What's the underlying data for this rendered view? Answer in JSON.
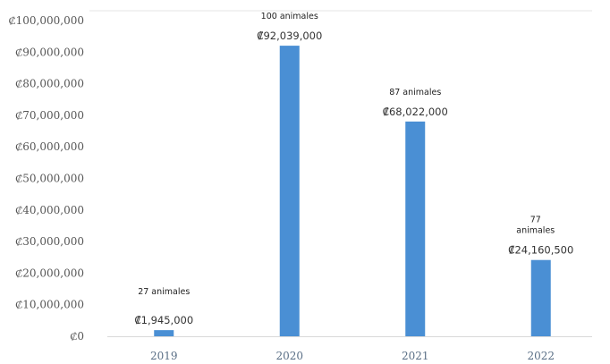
{
  "chart_data": {
    "type": "bar",
    "title": "",
    "xlabel": "",
    "ylabel": "",
    "categories": [
      "2019",
      "2020",
      "2021",
      "2022"
    ],
    "values": [
      1945000,
      92039000,
      68022000,
      24160500
    ],
    "value_labels": [
      "₡1,945,000",
      "₡92,039,000",
      "₡68,022,000",
      "₡24,160,500"
    ],
    "annotations": [
      [
        "27 animales"
      ],
      [
        "100 animales"
      ],
      [
        "87 animales"
      ],
      [
        "77",
        "animales"
      ]
    ],
    "ylim": [
      0,
      100000000
    ],
    "y_ticks": [
      {
        "value": 0,
        "label": "₡0"
      },
      {
        "value": 10000000,
        "label": "₡10,000,000"
      },
      {
        "value": 20000000,
        "label": "₡20,000,000"
      },
      {
        "value": 30000000,
        "label": "₡30,000,000"
      },
      {
        "value": 40000000,
        "label": "₡40,000,000"
      },
      {
        "value": 50000000,
        "label": "₡50,000,000"
      },
      {
        "value": 60000000,
        "label": "₡60,000,000"
      },
      {
        "value": 70000000,
        "label": "₡70,000,000"
      },
      {
        "value": 80000000,
        "label": "₡80,000,000"
      },
      {
        "value": 90000000,
        "label": "₡90,000,000"
      },
      {
        "value": 100000000,
        "label": "₡100,000,000"
      }
    ],
    "grid": false,
    "legend": "none",
    "bar_color": "#4a8fd4"
  }
}
